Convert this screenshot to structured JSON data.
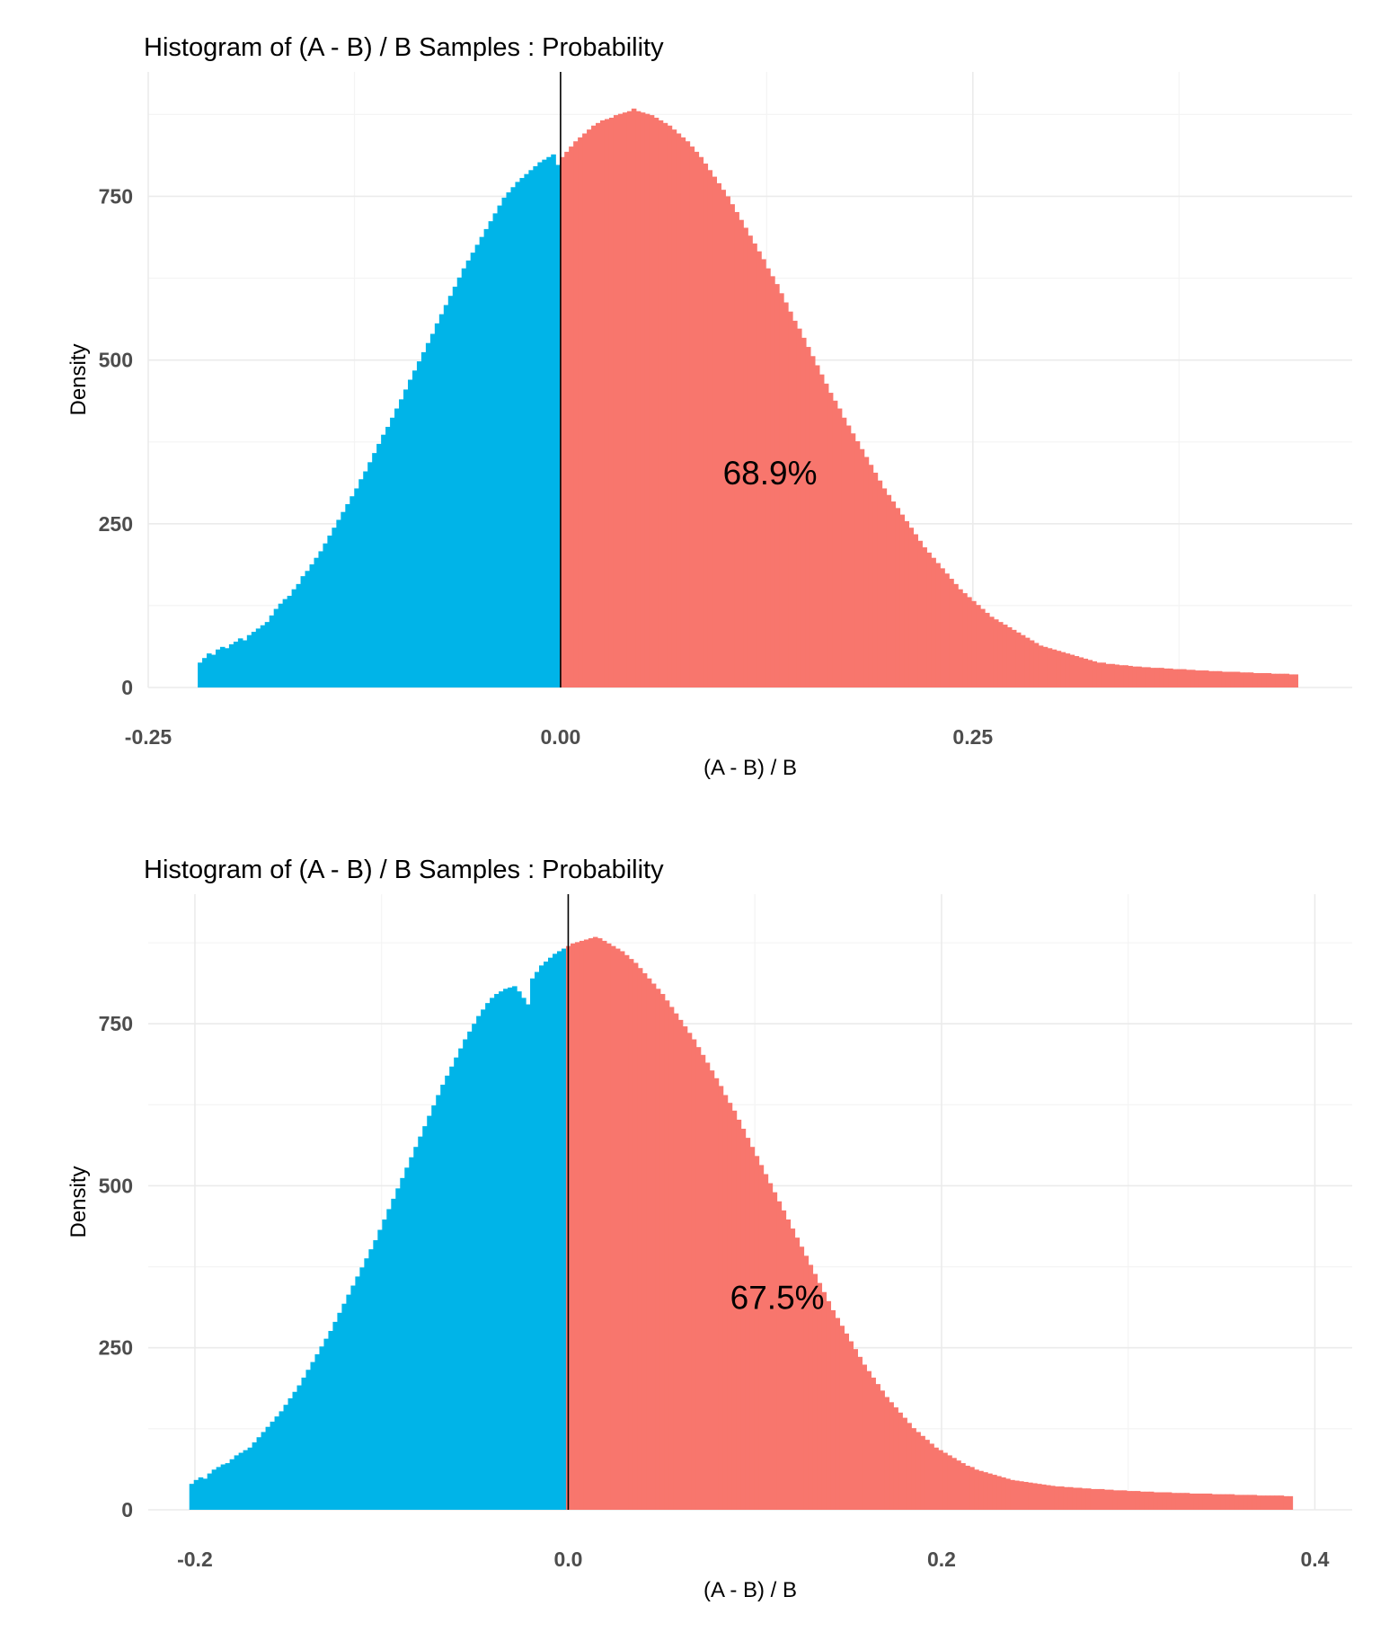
{
  "chart_data": [
    {
      "type": "bar",
      "title": "Histogram of (A - B) / B Samples : Probability",
      "xlabel": "(A - B) / B",
      "ylabel": "Density",
      "xlim": [
        -0.25,
        0.48
      ],
      "ylim": [
        0,
        940
      ],
      "x_ticks": [
        -0.25,
        0.0,
        0.25
      ],
      "x_tick_labels": [
        "-0.25",
        "0.00",
        "0.25"
      ],
      "y_ticks": [
        0,
        250,
        500,
        750
      ],
      "y_tick_labels": [
        "0",
        "250",
        "500",
        "750"
      ],
      "grid": true,
      "vline": 0,
      "annotation": {
        "text": "68.9%",
        "x": 0.127,
        "y": 310
      },
      "colors": {
        "negative": "#00b4e8",
        "positive": "#f8766d"
      },
      "series": [
        {
          "x_start": -0.22,
          "x_end": 0.447,
          "bins": 240,
          "values": [
            38,
            45,
            52,
            50,
            58,
            62,
            60,
            66,
            70,
            75,
            72,
            80,
            85,
            90,
            95,
            100,
            110,
            120,
            128,
            135,
            140,
            150,
            158,
            170,
            178,
            188,
            198,
            208,
            220,
            232,
            244,
            256,
            268,
            280,
            292,
            304,
            318,
            330,
            344,
            358,
            372,
            386,
            398,
            412,
            426,
            440,
            455,
            470,
            484,
            498,
            512,
            526,
            540,
            556,
            570,
            584,
            598,
            612,
            626,
            640,
            652,
            664,
            676,
            688,
            700,
            712,
            724,
            736,
            748,
            756,
            764,
            772,
            778,
            784,
            790,
            796,
            802,
            806,
            810,
            814,
            798,
            810,
            818,
            826,
            834,
            840,
            846,
            852,
            858,
            862,
            866,
            868,
            870,
            874,
            876,
            878,
            880,
            884,
            880,
            878,
            876,
            874,
            870,
            866,
            862,
            858,
            852,
            846,
            840,
            834,
            826,
            818,
            810,
            800,
            790,
            780,
            770,
            760,
            750,
            738,
            726,
            714,
            702,
            690,
            678,
            666,
            654,
            640,
            628,
            616,
            602,
            588,
            574,
            560,
            548,
            534,
            520,
            506,
            492,
            478,
            464,
            450,
            438,
            426,
            412,
            400,
            388,
            376,
            364,
            352,
            340,
            328,
            316,
            304,
            294,
            284,
            274,
            264,
            254,
            244,
            234,
            224,
            214,
            206,
            198,
            190,
            182,
            174,
            166,
            158,
            150,
            144,
            138,
            132,
            126,
            120,
            114,
            108,
            104,
            100,
            96,
            92,
            88,
            84,
            80,
            76,
            72,
            68,
            64,
            62,
            60,
            58,
            56,
            54,
            52,
            50,
            48,
            46,
            44,
            42,
            40,
            38,
            38,
            36,
            36,
            35,
            34,
            34,
            33,
            32,
            32,
            31,
            31,
            30,
            30,
            30,
            29,
            29,
            28,
            28,
            28,
            27,
            27,
            26,
            26,
            26,
            25,
            25,
            25,
            24,
            24,
            24,
            24,
            23,
            23,
            23,
            22,
            22,
            22,
            22,
            21,
            21,
            21,
            21,
            20,
            20
          ]
        }
      ]
    },
    {
      "type": "bar",
      "title": "Histogram of (A - B) / B Samples : Probability",
      "xlabel": "(A - B) / B",
      "ylabel": "Density",
      "xlim": [
        -0.225,
        0.42
      ],
      "ylim": [
        0,
        950
      ],
      "x_ticks": [
        -0.2,
        0.0,
        0.2,
        0.4
      ],
      "x_tick_labels": [
        "-0.2",
        "0.0",
        "0.2",
        "0.4"
      ],
      "y_ticks": [
        0,
        250,
        500,
        750
      ],
      "y_tick_labels": [
        "0",
        "250",
        "500",
        "750"
      ],
      "grid": true,
      "vline": 0,
      "annotation": {
        "text": "67.5%",
        "x": 0.112,
        "y": 310
      },
      "colors": {
        "negative": "#00b4e8",
        "positive": "#f8766d"
      },
      "series": [
        {
          "x_start": -0.203,
          "x_end": 0.388,
          "bins": 240,
          "values": [
            40,
            46,
            50,
            48,
            56,
            62,
            66,
            70,
            72,
            78,
            84,
            88,
            92,
            96,
            104,
            112,
            120,
            128,
            136,
            144,
            152,
            162,
            172,
            182,
            192,
            204,
            216,
            228,
            240,
            252,
            264,
            276,
            290,
            304,
            318,
            332,
            346,
            360,
            374,
            388,
            402,
            416,
            432,
            448,
            464,
            480,
            496,
            512,
            528,
            544,
            560,
            576,
            592,
            608,
            624,
            640,
            656,
            670,
            684,
            698,
            712,
            726,
            738,
            750,
            762,
            772,
            782,
            790,
            796,
            800,
            804,
            806,
            808,
            800,
            790,
            780,
            820,
            830,
            840,
            846,
            852,
            858,
            862,
            866,
            870,
            874,
            876,
            878,
            880,
            882,
            884,
            882,
            878,
            874,
            870,
            866,
            862,
            856,
            850,
            844,
            836,
            828,
            820,
            812,
            804,
            796,
            786,
            776,
            766,
            756,
            746,
            736,
            726,
            714,
            702,
            690,
            678,
            666,
            654,
            640,
            628,
            616,
            602,
            588,
            574,
            560,
            546,
            532,
            518,
            504,
            490,
            476,
            462,
            448,
            434,
            420,
            406,
            392,
            378,
            364,
            350,
            336,
            322,
            308,
            296,
            284,
            272,
            260,
            248,
            236,
            224,
            214,
            204,
            194,
            184,
            174,
            166,
            158,
            150,
            142,
            134,
            126,
            120,
            114,
            108,
            102,
            96,
            92,
            88,
            84,
            80,
            76,
            72,
            68,
            66,
            62,
            60,
            58,
            56,
            54,
            52,
            50,
            48,
            46,
            45,
            44,
            43,
            42,
            41,
            40,
            39,
            38,
            37,
            36,
            36,
            35,
            35,
            34,
            34,
            33,
            33,
            32,
            32,
            32,
            31,
            31,
            30,
            30,
            30,
            29,
            29,
            29,
            28,
            28,
            28,
            27,
            27,
            27,
            27,
            26,
            26,
            26,
            26,
            25,
            25,
            25,
            25,
            25,
            24,
            24,
            24,
            24,
            24,
            23,
            23,
            23,
            23,
            23,
            22,
            22,
            22,
            22,
            22,
            22,
            21,
            21
          ]
        }
      ]
    }
  ]
}
